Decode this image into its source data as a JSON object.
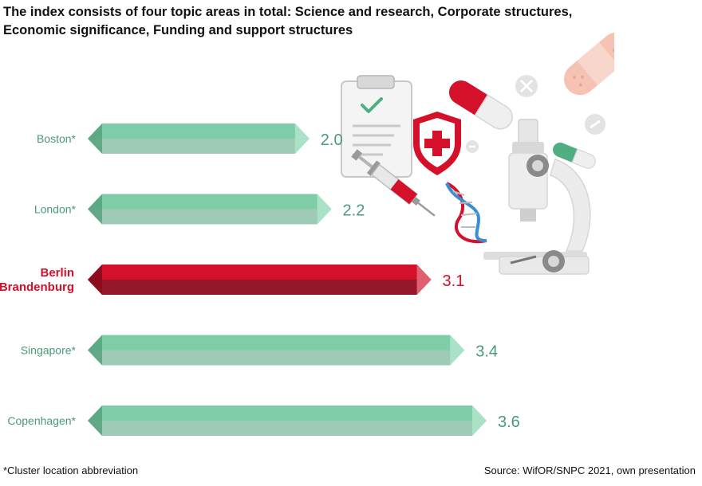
{
  "title_lines": [
    "The index consists of four topic areas in total: Science and research, Corporate structures,",
    "Economic significance, Funding and support structures"
  ],
  "footnote": "*Cluster location abbreviation",
  "source": "Source: WifOR/SNPC 2021, own presentation",
  "colors": {
    "bar_green": "#7fcca8",
    "bar_green_dark": "#4f9e7a",
    "bar_green_light": "#a9e2c6",
    "label_green": "#4a9a78",
    "bar_red": "#d4102a",
    "bar_red_dark": "#8e0c1c",
    "bar_red_light": "#e06072",
    "label_red": "#d4102a"
  },
  "chart_data": {
    "type": "bar",
    "orientation": "horizontal",
    "categories": [
      "Boston*",
      "London*",
      "Berlin Brandenburg",
      "Singapore*",
      "Copenhagen*"
    ],
    "values": [
      2.0,
      2.2,
      3.1,
      3.4,
      3.6
    ],
    "value_labels": [
      "2.0",
      "2.2",
      "3.1",
      "3.4",
      "3.6"
    ],
    "highlight": "Berlin Brandenburg",
    "xlim": [
      0,
      3.6
    ],
    "grid": false,
    "legend": "none"
  },
  "illustration": {
    "icons": [
      "clipboard-icon",
      "shield-cross-icon",
      "syringe-icon",
      "capsule-icon",
      "bandage-icon",
      "dna-icon",
      "microscope-icon",
      "plus-circle-icon",
      "minus-circle-icon"
    ]
  }
}
